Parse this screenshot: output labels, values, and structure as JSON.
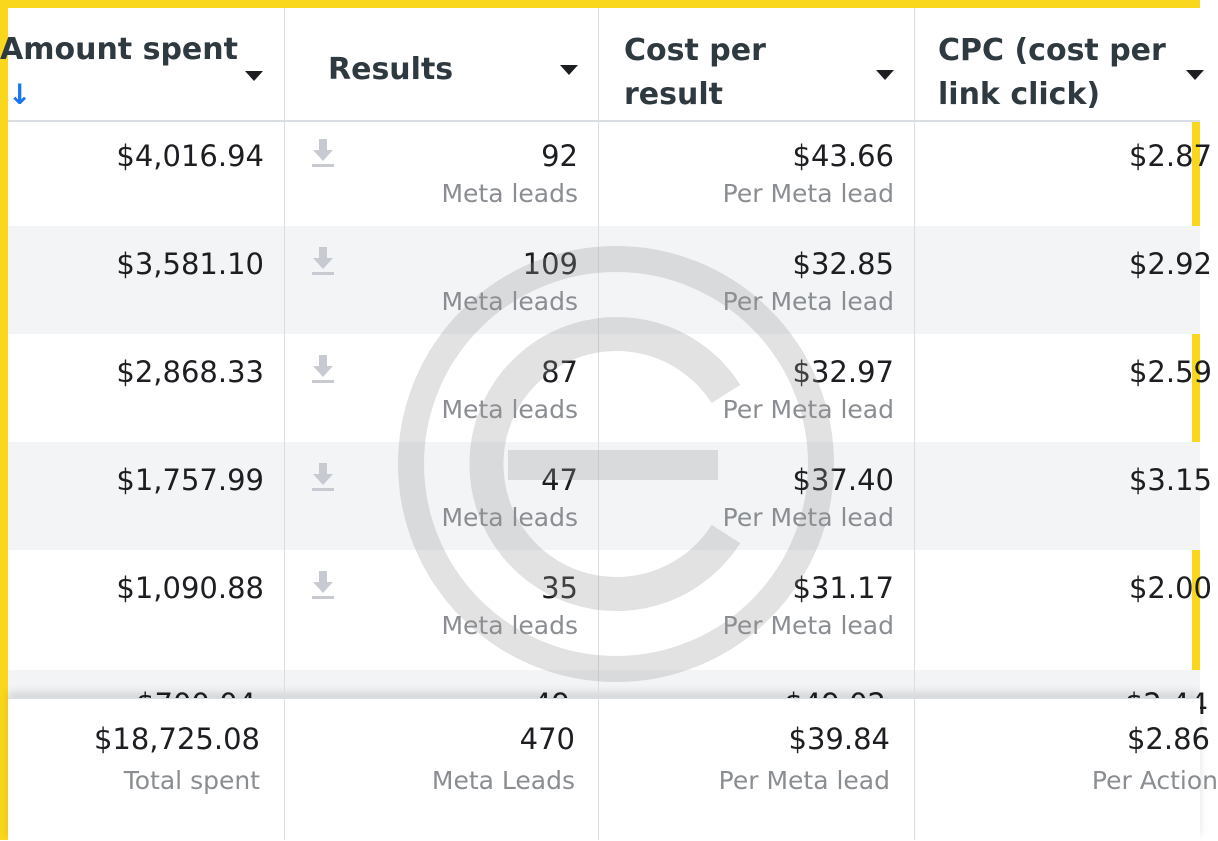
{
  "frame_color": "#f9d71c",
  "accent_color": "#1877f2",
  "columns": [
    {
      "title": "Amount spent",
      "sorted": true,
      "sort_arrow": "↓"
    },
    {
      "title": "Results",
      "sorted": false
    },
    {
      "title": "Cost per\nresult",
      "sorted": false
    },
    {
      "title": "CPC (cost per\nlink click)",
      "sorted": false
    }
  ],
  "rows": [
    {
      "amount_spent": "$4,016.94",
      "results": "92",
      "results_label": "Meta leads",
      "cost_per_result": "$43.66",
      "cost_label": "Per Meta lead",
      "cpc": "$2.87"
    },
    {
      "amount_spent": "$3,581.10",
      "results": "109",
      "results_label": "Meta leads",
      "cost_per_result": "$32.85",
      "cost_label": "Per Meta lead",
      "cpc": "$2.92"
    },
    {
      "amount_spent": "$2,868.33",
      "results": "87",
      "results_label": "Meta leads",
      "cost_per_result": "$32.97",
      "cost_label": "Per Meta lead",
      "cpc": "$2.59"
    },
    {
      "amount_spent": "$1,757.99",
      "results": "47",
      "results_label": "Meta leads",
      "cost_per_result": "$37.40",
      "cost_label": "Per Meta lead",
      "cpc": "$3.15"
    },
    {
      "amount_spent": "$1,090.88",
      "results": "35",
      "results_label": "Meta leads",
      "cost_per_result": "$31.17",
      "cost_label": "Per Meta lead",
      "cpc": "$2.00"
    }
  ],
  "totals": {
    "amount_spent": "$18,725.08",
    "amount_label": "Total spent",
    "results": "470",
    "results_label": "Meta Leads",
    "cost_per_result": "$39.84",
    "cost_label": "Per Meta lead",
    "cpc": "$2.86",
    "cpc_label": "Per Action"
  },
  "icons": {
    "download": "download-icon",
    "caret": "chevron-down-icon",
    "watermark": "copyright-watermark-icon"
  }
}
